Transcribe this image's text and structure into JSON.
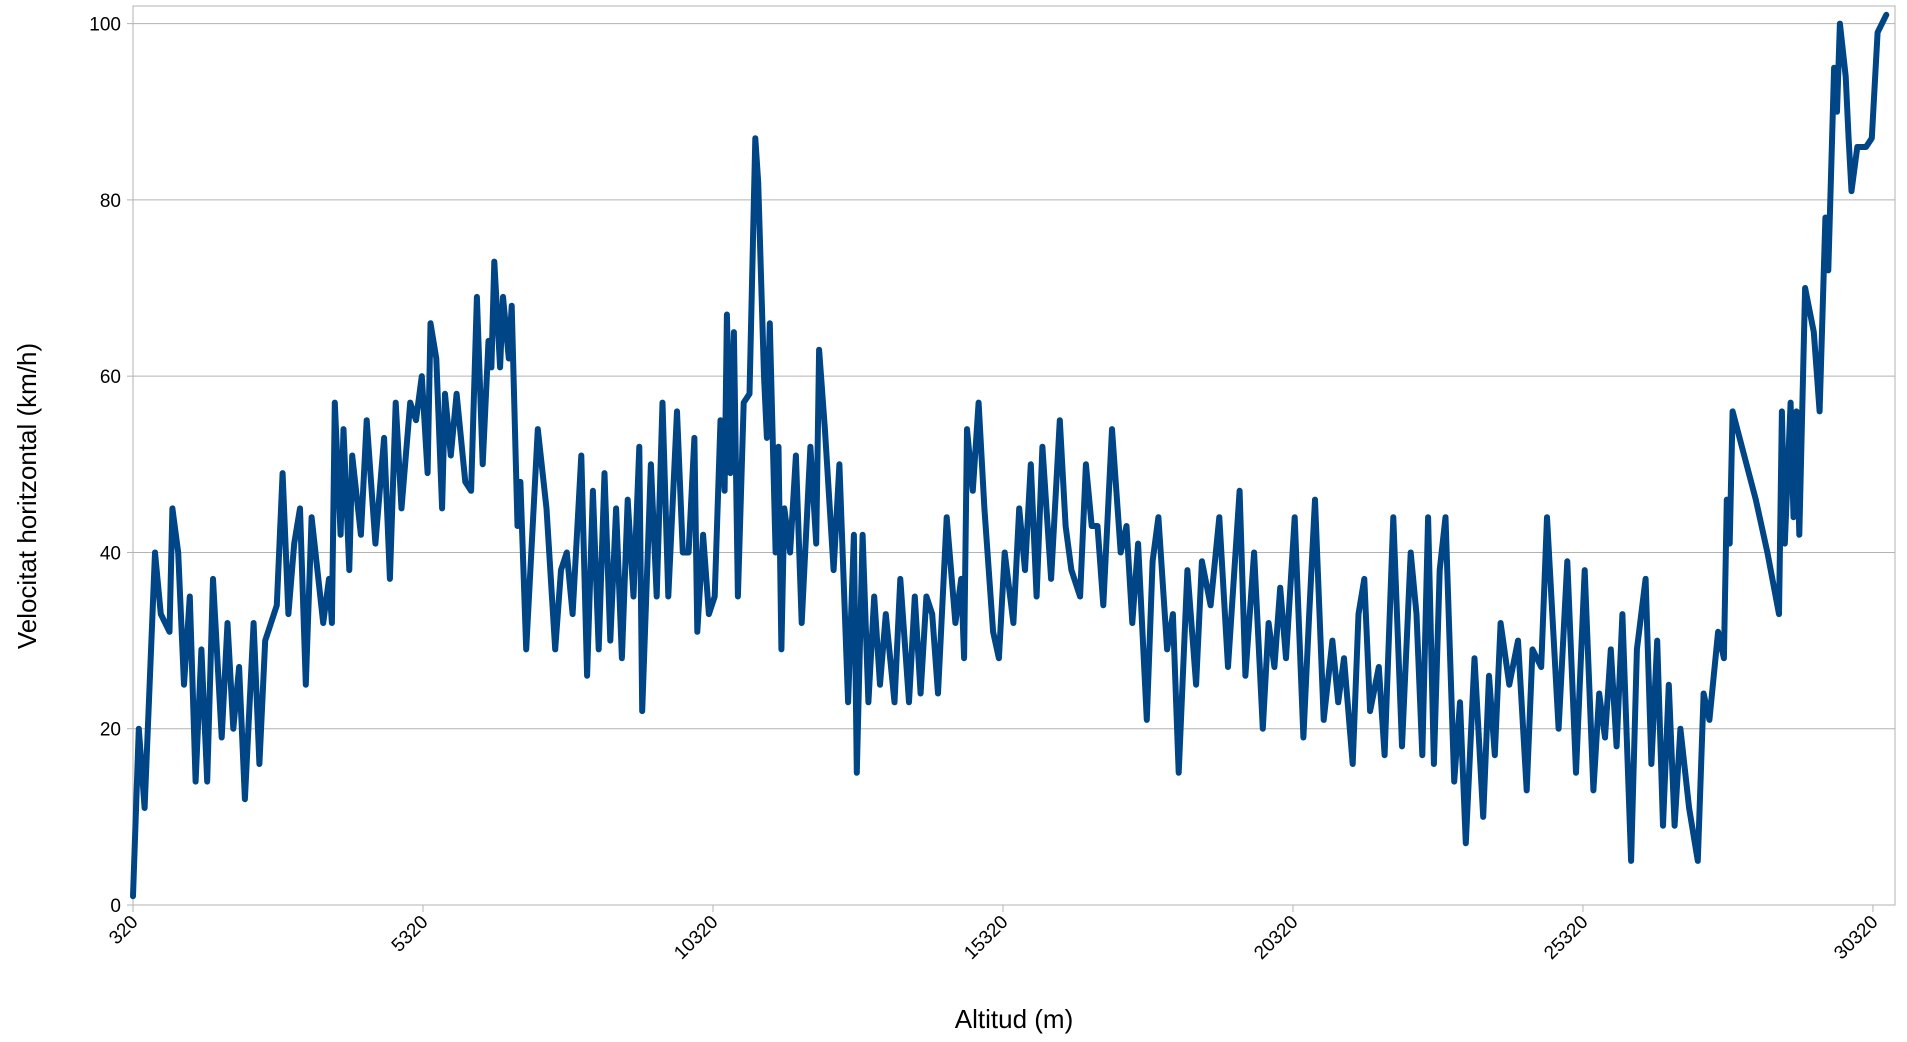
{
  "chart_data": {
    "type": "line",
    "x_label": "Altitud (m)",
    "y_label": "Velocitat horitzontal (km/h)",
    "color": "#004586",
    "grid": true,
    "xlim": [
      320,
      30700
    ],
    "ylim": [
      0,
      102
    ],
    "xticks": [
      320,
      5320,
      10320,
      15320,
      20320,
      25320,
      30320
    ],
    "yticks": [
      0,
      20,
      40,
      60,
      80,
      100
    ],
    "x": [
      320,
      420,
      520,
      700,
      800,
      950,
      1000,
      1100,
      1200,
      1300,
      1400,
      1500,
      1600,
      1700,
      1850,
      1950,
      2050,
      2150,
      2250,
      2400,
      2500,
      2600,
      2800,
      2900,
      3000,
      3100,
      3200,
      3300,
      3400,
      3600,
      3700,
      3750,
      3800,
      3900,
      3950,
      4050,
      4100,
      4250,
      4350,
      4500,
      4650,
      4750,
      4850,
      4950,
      5100,
      5200,
      5300,
      5400,
      5450,
      5550,
      5650,
      5700,
      5800,
      5900,
      6050,
      6150,
      6250,
      6350,
      6450,
      6500,
      6550,
      6650,
      6700,
      6800,
      6850,
      6950,
      7000,
      7100,
      7300,
      7450,
      7600,
      7700,
      7800,
      7900,
      8050,
      8150,
      8250,
      8350,
      8450,
      8550,
      8650,
      8750,
      8850,
      8950,
      9050,
      9100,
      9250,
      9350,
      9450,
      9550,
      9700,
      9800,
      9900,
      10000,
      10050,
      10150,
      10250,
      10350,
      10450,
      10520,
      10560,
      10620,
      10680,
      10750,
      10850,
      10950,
      11050,
      11100,
      11200,
      11250,
      11300,
      11400,
      11450,
      11500,
      11550,
      11650,
      11750,
      11850,
      12000,
      12100,
      12150,
      12250,
      12400,
      12500,
      12650,
      12750,
      12800,
      12900,
      13000,
      13100,
      13200,
      13300,
      13450,
      13550,
      13700,
      13800,
      13900,
      14000,
      14100,
      14200,
      14350,
      14500,
      14600,
      14650,
      14700,
      14800,
      14900,
      15000,
      15150,
      15250,
      15350,
      15500,
      15600,
      15700,
      15800,
      15900,
      16000,
      16150,
      16300,
      16400,
      16500,
      16650,
      16750,
      16850,
      16950,
      17050,
      17200,
      17350,
      17450,
      17550,
      17650,
      17800,
      17900,
      18000,
      18150,
      18250,
      18350,
      18500,
      18650,
      18750,
      18900,
      19050,
      19200,
      19400,
      19500,
      19650,
      19800,
      19900,
      20000,
      20100,
      20200,
      20350,
      20500,
      20600,
      20700,
      20850,
      21000,
      21100,
      21200,
      21350,
      21450,
      21550,
      21650,
      21800,
      21900,
      22050,
      22200,
      22350,
      22450,
      22550,
      22650,
      22750,
      22850,
      22950,
      23100,
      23200,
      23300,
      23450,
      23600,
      23700,
      23800,
      23900,
      24050,
      24200,
      24350,
      24450,
      24600,
      24700,
      24900,
      25050,
      25200,
      25350,
      25500,
      25600,
      25700,
      25800,
      25900,
      26000,
      26150,
      26250,
      26400,
      26500,
      26600,
      26700,
      26800,
      26900,
      27000,
      27150,
      27300,
      27400,
      27500,
      27650,
      27750,
      27800,
      27850,
      27900,
      28300,
      28500,
      28700,
      28750,
      28800,
      28900,
      28950,
      29000,
      29050,
      29150,
      29300,
      29400,
      29500,
      29550,
      29650,
      29700,
      29750,
      29850,
      29900,
      29950,
      30050,
      30200,
      30300,
      30400,
      30550
    ],
    "values": [
      1,
      20,
      11,
      40,
      33,
      31,
      45,
      40,
      25,
      35,
      14,
      29,
      14,
      37,
      19,
      32,
      20,
      27,
      12,
      32,
      16,
      30,
      34,
      49,
      33,
      41,
      45,
      25,
      44,
      32,
      37,
      32,
      57,
      42,
      54,
      38,
      51,
      42,
      55,
      41,
      53,
      37,
      57,
      45,
      57,
      55,
      60,
      49,
      66,
      62,
      45,
      58,
      51,
      58,
      48,
      47,
      69,
      50,
      64,
      61,
      73,
      61,
      69,
      62,
      68,
      43,
      48,
      29,
      54,
      45,
      29,
      38,
      40,
      33,
      51,
      26,
      47,
      29,
      49,
      30,
      45,
      28,
      46,
      35,
      52,
      22,
      50,
      35,
      57,
      35,
      56,
      40,
      40,
      53,
      31,
      42,
      33,
      35,
      55,
      47,
      67,
      49,
      65,
      35,
      57,
      58,
      87,
      82,
      60,
      53,
      66,
      40,
      52,
      29,
      45,
      40,
      51,
      32,
      52,
      41,
      63,
      54,
      38,
      50,
      23,
      42,
      15,
      42,
      23,
      35,
      25,
      33,
      23,
      37,
      23,
      35,
      24,
      35,
      33,
      24,
      44,
      32,
      37,
      28,
      54,
      47,
      57,
      45,
      31,
      28,
      40,
      32,
      45,
      38,
      50,
      35,
      52,
      37,
      55,
      43,
      38,
      35,
      50,
      43,
      43,
      34,
      54,
      40,
      43,
      32,
      41,
      21,
      39,
      44,
      29,
      33,
      15,
      38,
      25,
      39,
      34,
      44,
      27,
      47,
      26,
      40,
      20,
      32,
      27,
      36,
      28,
      44,
      19,
      33,
      46,
      21,
      30,
      23,
      28,
      16,
      33,
      37,
      22,
      27,
      17,
      44,
      18,
      40,
      33,
      17,
      44,
      16,
      38,
      44,
      14,
      23,
      7,
      28,
      10,
      26,
      17,
      32,
      25,
      30,
      13,
      29,
      27,
      44,
      20,
      39,
      15,
      38,
      13,
      24,
      19,
      29,
      18,
      33,
      5,
      29,
      37,
      16,
      30,
      9,
      25,
      9,
      20,
      11,
      5,
      24,
      21,
      31,
      28,
      46,
      41,
      56,
      46,
      40,
      33,
      56,
      41,
      57,
      44,
      56,
      42,
      70,
      65,
      56,
      78,
      72,
      95,
      90,
      100,
      94,
      87,
      81,
      86,
      86,
      87,
      99,
      101
    ]
  }
}
